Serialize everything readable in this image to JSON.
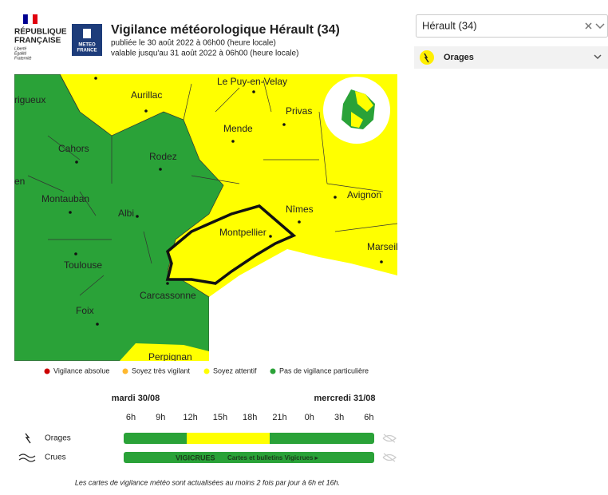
{
  "header": {
    "logo": {
      "line1": "RÉPUBLIQUE",
      "line2": "FRANÇAISE",
      "motto1": "Liberté",
      "motto2": "Égalité",
      "motto3": "Fraternité"
    },
    "meteo_logo": {
      "line1": "METEO",
      "line2": "FRANCE"
    },
    "title": "Vigilance météorologique Hérault (34)",
    "published": "publiée le 30 août 2022 à 06h00 (heure locale)",
    "valid": "valable jusqu'au 31 août 2022 à 06h00 (heure locale)"
  },
  "sidebar": {
    "select": "Hérault (34)",
    "phenomenon": "Orages"
  },
  "map": {
    "cities": [
      "rigueux",
      "Aurillac",
      "Le Puy-en-Velay",
      "Mende",
      "Privas",
      "Cahors",
      "Rodez",
      "en",
      "Avignon",
      "Montauban",
      "Albi",
      "Nîmes",
      "Montpellier",
      "Marseil",
      "Toulouse",
      "Carcassonne",
      "Foix",
      "Perpignan"
    ]
  },
  "legend": [
    "Vigilance absolue",
    "Soyez très vigilant",
    "Soyez attentif",
    "Pas de vigilance particulière"
  ],
  "timeline": {
    "days": [
      "mardi 30/08",
      "mercredi 31/08"
    ],
    "hours": [
      "6h",
      "9h",
      "12h",
      "15h",
      "18h",
      "21h",
      "0h",
      "3h",
      "6h"
    ],
    "rows": [
      "Orages",
      "Crues"
    ],
    "vigicrues_logo": "VIGICRUES",
    "vigicrues_link": "Cartes et bulletins Vigicrues ▸"
  },
  "footer": "Les cartes de vigilance météo sont actualisées au moins 2 fois par jour à 6h et 16h."
}
